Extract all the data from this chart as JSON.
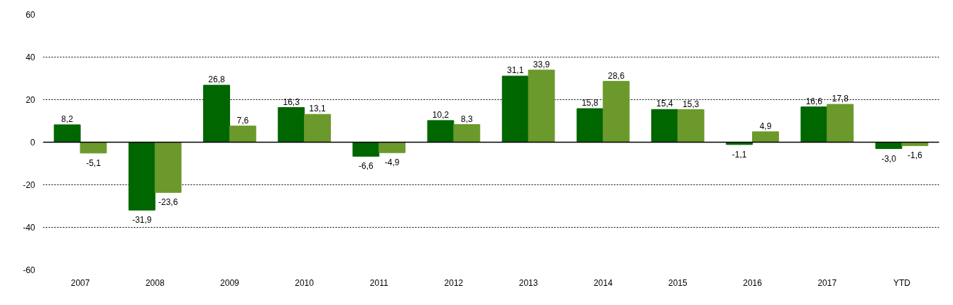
{
  "chart_data": {
    "type": "bar",
    "categories": [
      "2007",
      "2008",
      "2009",
      "2010",
      "2011",
      "2012",
      "2013",
      "2014",
      "2015",
      "2016",
      "2017",
      "YTD"
    ],
    "series": [
      {
        "color": "#006600",
        "values": [
          8.2,
          -31.9,
          26.8,
          16.3,
          -6.6,
          10.2,
          31.1,
          15.8,
          15.4,
          -1.1,
          16.6,
          -3.0
        ],
        "value_labels": [
          "8,2",
          "-31,9",
          "26,8",
          "16,3",
          "-6,6",
          "10,2",
          "31,1",
          "15,8",
          "15,4",
          "-1,1",
          "16,6",
          "-3,0"
        ]
      },
      {
        "color": "#6b992b",
        "values": [
          -5.1,
          -23.6,
          7.6,
          13.1,
          -4.9,
          8.3,
          33.9,
          28.6,
          15.3,
          4.9,
          17.8,
          -1.6
        ],
        "value_labels": [
          "-5,1",
          "-23,6",
          "7,6",
          "13,1",
          "-4,9",
          "8,3",
          "33,9",
          "28,6",
          "15,3",
          "4,9",
          "17,8",
          "-1,6"
        ]
      }
    ],
    "ylim": [
      -60,
      60
    ],
    "yticks": [
      -60,
      -40,
      -20,
      0,
      20,
      40,
      60
    ],
    "grid": "y"
  }
}
